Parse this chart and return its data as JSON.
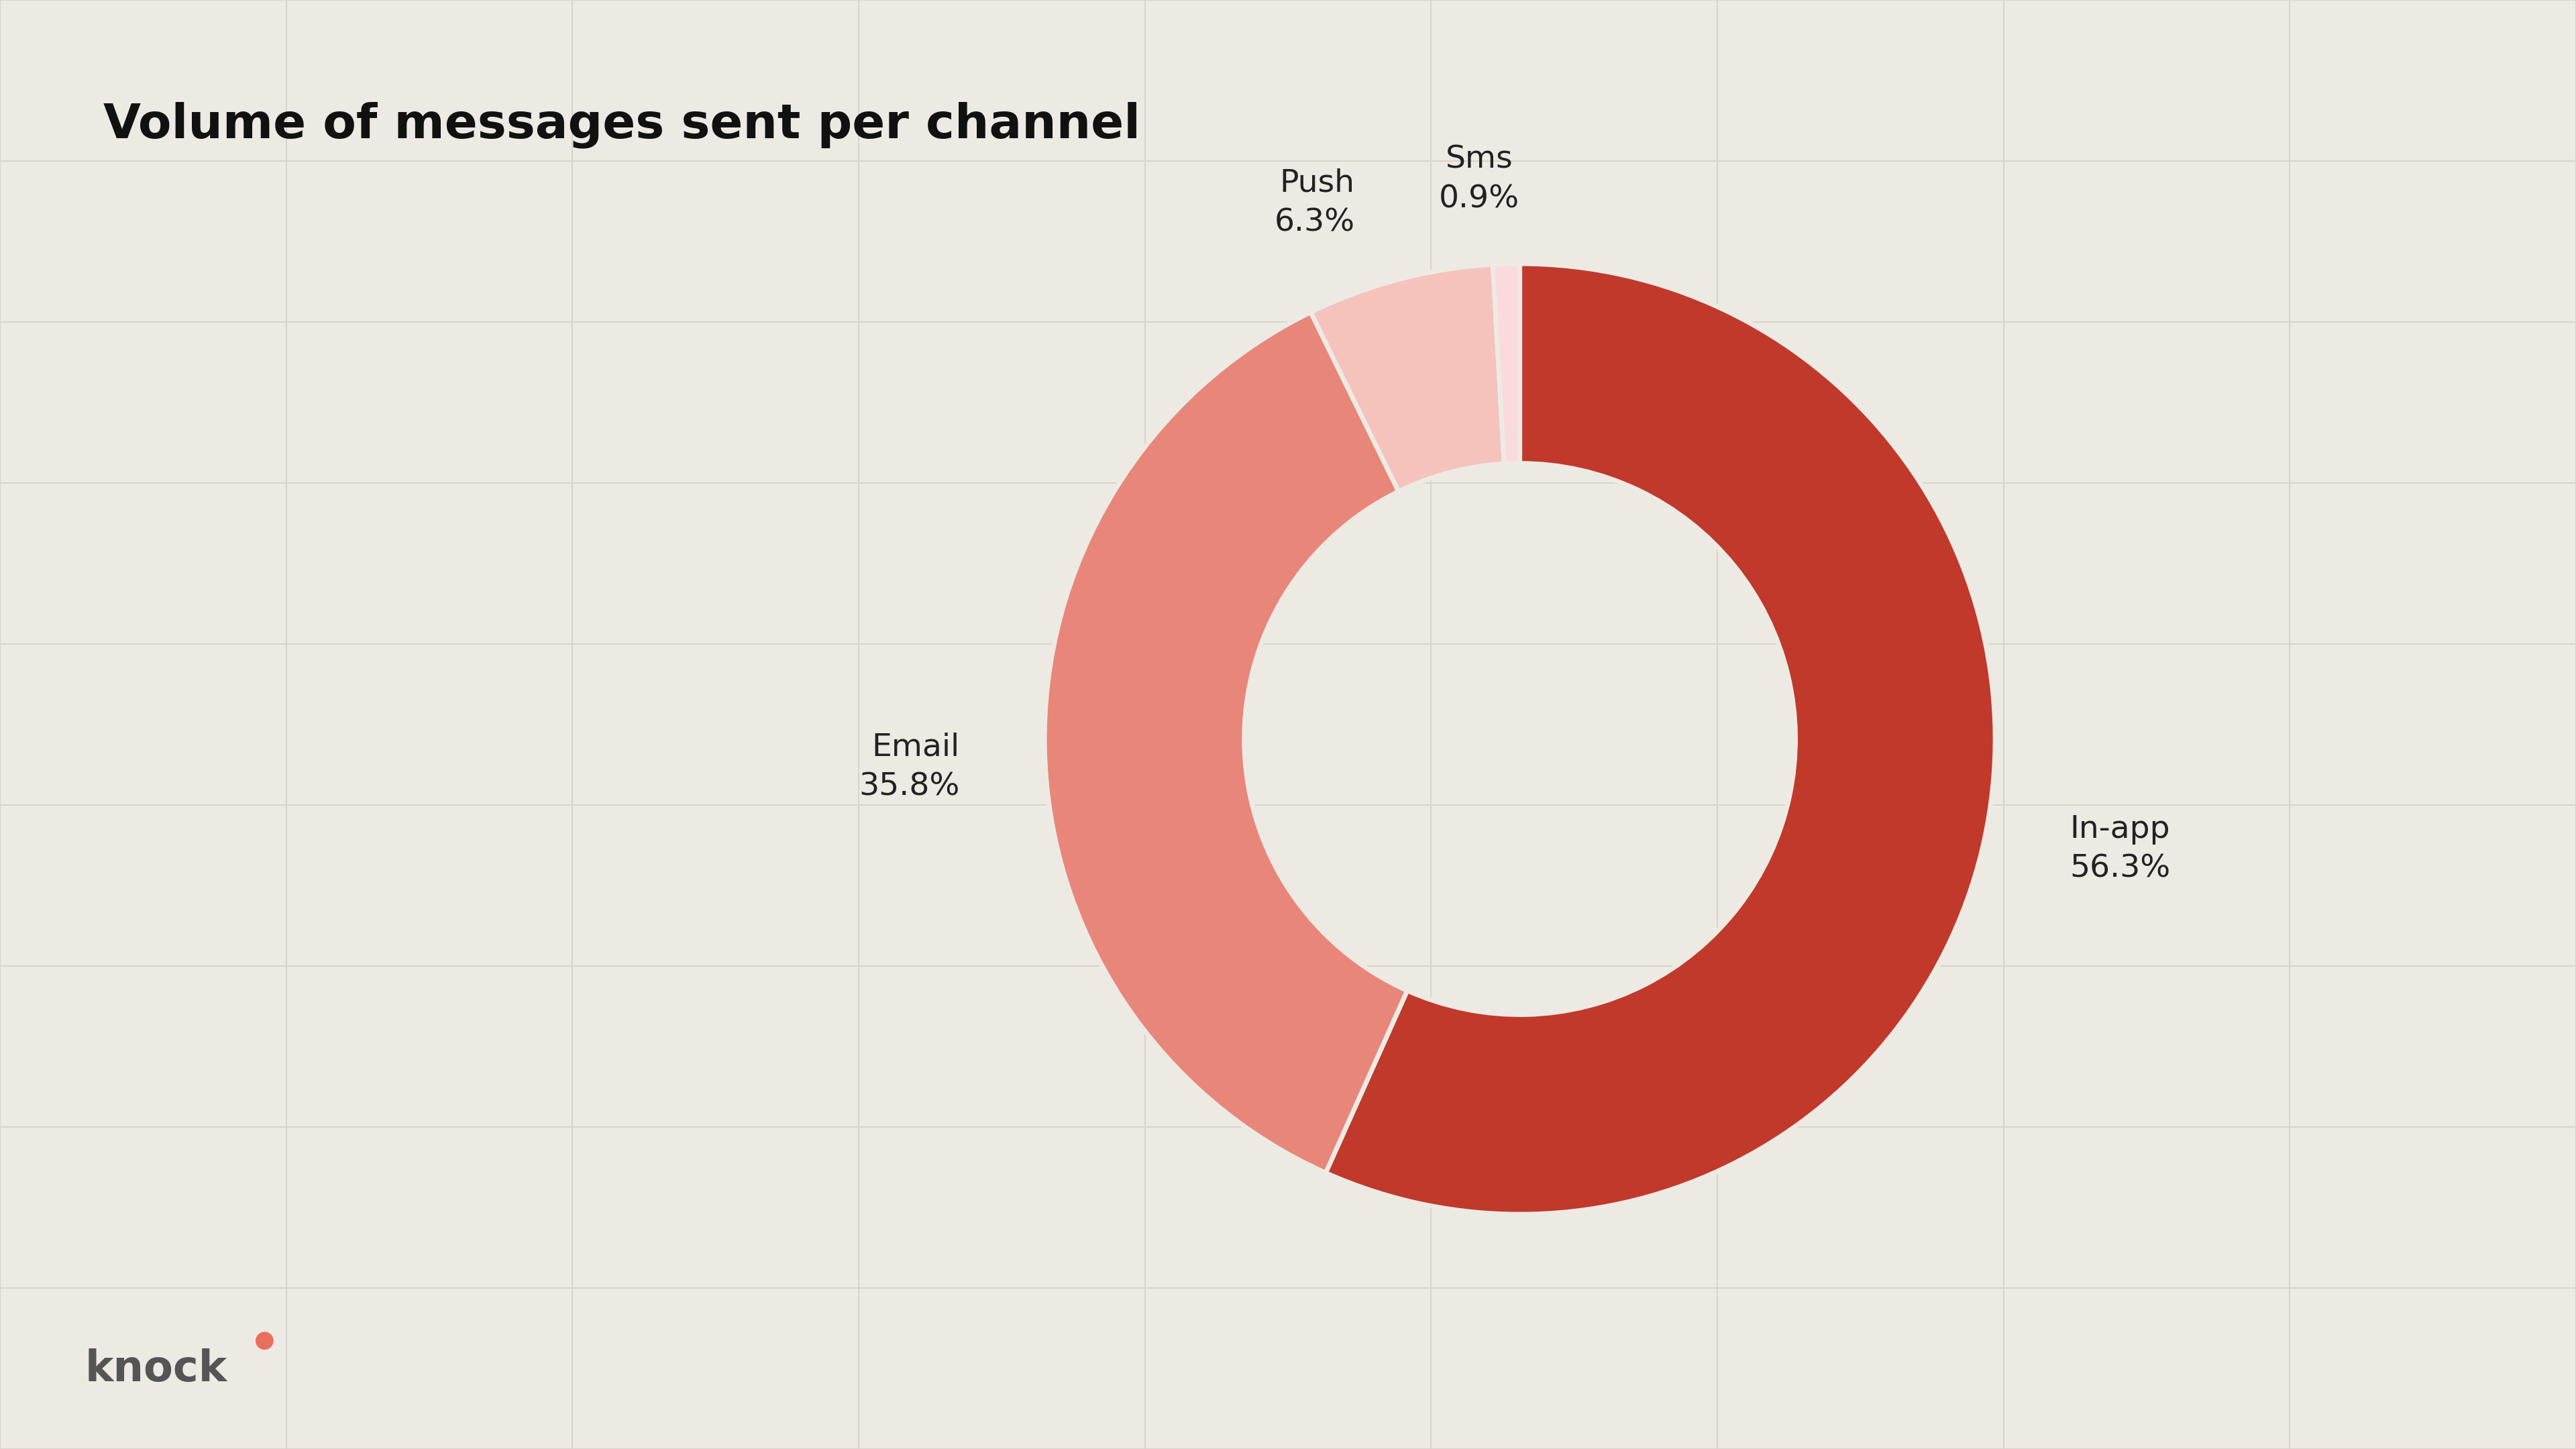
{
  "title": "Volume of messages sent per channel",
  "segments": [
    {
      "label": "In-app",
      "pct": 56.3,
      "color": "#c0392b"
    },
    {
      "label": "Email",
      "pct": 35.8,
      "color": "#e8867a"
    },
    {
      "label": "Push",
      "pct": 6.3,
      "color": "#f5c3bc"
    },
    {
      "label": "Sms",
      "pct": 0.9,
      "color": "#fadadd"
    }
  ],
  "background_color": "#edeae4",
  "grid_color": "#d9d4cc",
  "title_fontsize": 52,
  "label_fontsize": 34,
  "donut_width": 0.42,
  "logo_dot_color": "#e8705a",
  "logo_text_color": "#555555",
  "logo_fontsize": 46
}
